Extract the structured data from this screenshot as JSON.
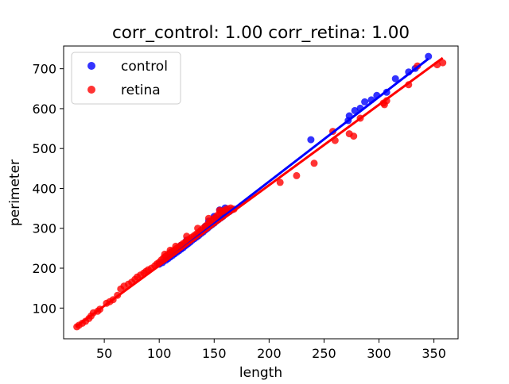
{
  "chart_data": {
    "type": "scatter",
    "title": "corr_control: 1.00  corr_retina: 1.00",
    "xlabel": "length",
    "ylabel": "perimeter",
    "xlim": [
      13,
      372
    ],
    "ylim": [
      23,
      757
    ],
    "xticks": [
      50,
      100,
      150,
      200,
      250,
      300,
      350
    ],
    "yticks": [
      100,
      200,
      300,
      400,
      500,
      600,
      700
    ],
    "grid": false,
    "legend": "top-left",
    "series": [
      {
        "name": "control",
        "color": "#0000ff",
        "points": [
          [
            100,
            210
          ],
          [
            103,
            214
          ],
          [
            106,
            220
          ],
          [
            108,
            224
          ],
          [
            110,
            228
          ],
          [
            112,
            232
          ],
          [
            114,
            236
          ],
          [
            116,
            240
          ],
          [
            118,
            244
          ],
          [
            120,
            248
          ],
          [
            122,
            252
          ],
          [
            124,
            257
          ],
          [
            126,
            261
          ],
          [
            128,
            265
          ],
          [
            130,
            270
          ],
          [
            132,
            274
          ],
          [
            134,
            278
          ],
          [
            136,
            282
          ],
          [
            138,
            287
          ],
          [
            140,
            291
          ],
          [
            142,
            296
          ],
          [
            144,
            300
          ],
          [
            146,
            305
          ],
          [
            148,
            309
          ],
          [
            150,
            313
          ],
          [
            152,
            318
          ],
          [
            154,
            322
          ],
          [
            156,
            326
          ],
          [
            158,
            330
          ],
          [
            160,
            335
          ],
          [
            162,
            339
          ],
          [
            164,
            342
          ],
          [
            166,
            346
          ],
          [
            145,
            318
          ],
          [
            150,
            330
          ],
          [
            155,
            346
          ],
          [
            160,
            351
          ],
          [
            142,
            305
          ],
          [
            125,
            270
          ],
          [
            120,
            258
          ],
          [
            238,
            522
          ],
          [
            272,
            570
          ],
          [
            273,
            582
          ],
          [
            278,
            595
          ],
          [
            283,
            601
          ],
          [
            287,
            617
          ],
          [
            293,
            622
          ],
          [
            298,
            633
          ],
          [
            307,
            641
          ],
          [
            315,
            675
          ],
          [
            327,
            692
          ],
          [
            333,
            701
          ],
          [
            345,
            731
          ]
        ],
        "fit": [
          [
            100,
            205
          ],
          [
            345,
            725
          ]
        ]
      },
      {
        "name": "retina",
        "color": "#ff0000",
        "points": [
          [
            25,
            53
          ],
          [
            27,
            57
          ],
          [
            30,
            62
          ],
          [
            33,
            67
          ],
          [
            36,
            74
          ],
          [
            38,
            80
          ],
          [
            40,
            88
          ],
          [
            44,
            92
          ],
          [
            46,
            97
          ],
          [
            52,
            112
          ],
          [
            55,
            116
          ],
          [
            58,
            121
          ],
          [
            62,
            132
          ],
          [
            65,
            148
          ],
          [
            68,
            155
          ],
          [
            72,
            160
          ],
          [
            75,
            165
          ],
          [
            78,
            172
          ],
          [
            80,
            178
          ],
          [
            83,
            183
          ],
          [
            86,
            188
          ],
          [
            88,
            192
          ],
          [
            90,
            196
          ],
          [
            93,
            200
          ],
          [
            96,
            206
          ],
          [
            98,
            211
          ],
          [
            100,
            215
          ],
          [
            102,
            221
          ],
          [
            104,
            226
          ],
          [
            106,
            230
          ],
          [
            108,
            235
          ],
          [
            110,
            239
          ],
          [
            112,
            243
          ],
          [
            114,
            246
          ],
          [
            116,
            250
          ],
          [
            118,
            254
          ],
          [
            120,
            258
          ],
          [
            122,
            262
          ],
          [
            124,
            266
          ],
          [
            126,
            270
          ],
          [
            128,
            274
          ],
          [
            130,
            278
          ],
          [
            132,
            282
          ],
          [
            134,
            286
          ],
          [
            136,
            290
          ],
          [
            138,
            295
          ],
          [
            140,
            300
          ],
          [
            142,
            305
          ],
          [
            144,
            310
          ],
          [
            146,
            315
          ],
          [
            148,
            320
          ],
          [
            150,
            325
          ],
          [
            152,
            330
          ],
          [
            154,
            335
          ],
          [
            156,
            340
          ],
          [
            158,
            343
          ],
          [
            160,
            346
          ],
          [
            162,
            349
          ],
          [
            165,
            351
          ],
          [
            168,
            348
          ],
          [
            105,
            235
          ],
          [
            110,
            245
          ],
          [
            115,
            255
          ],
          [
            125,
            280
          ],
          [
            135,
            300
          ],
          [
            145,
            325
          ],
          [
            155,
            345
          ],
          [
            210,
            415
          ],
          [
            225,
            432
          ],
          [
            241,
            463
          ],
          [
            258,
            543
          ],
          [
            260,
            520
          ],
          [
            273,
            537
          ],
          [
            277,
            531
          ],
          [
            283,
            576
          ],
          [
            304,
            614
          ],
          [
            305,
            610
          ],
          [
            307,
            620
          ],
          [
            327,
            660
          ],
          [
            335,
            707
          ],
          [
            353,
            710
          ],
          [
            358,
            715
          ]
        ],
        "fit": [
          [
            24,
            53
          ],
          [
            358,
            727
          ]
        ]
      }
    ]
  }
}
